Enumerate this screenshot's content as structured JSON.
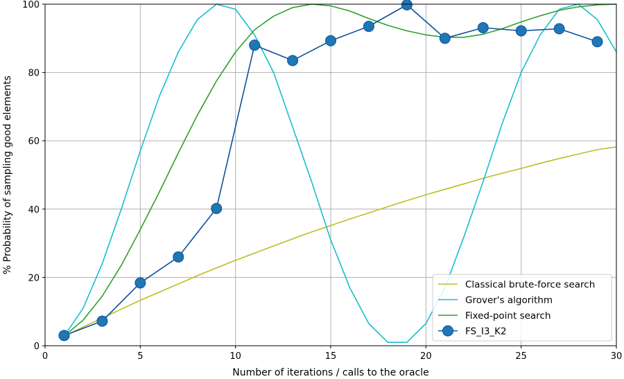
{
  "chart_data": {
    "type": "line",
    "xlabel": "Number of iterations / calls to the oracle",
    "ylabel": "% Probability of sampling good elements",
    "xlim": [
      0,
      30
    ],
    "ylim": [
      0,
      100
    ],
    "xticks": [
      0,
      5,
      10,
      15,
      20,
      25,
      30
    ],
    "yticks": [
      0,
      20,
      40,
      60,
      80,
      100
    ],
    "grid": true,
    "legend_position": "bottom-right",
    "series": [
      {
        "name": "Classical brute-force search",
        "color": "#bcbd22",
        "marker": false,
        "x": [
          1,
          2,
          3,
          4,
          5,
          6,
          7,
          8,
          9,
          10,
          11,
          12,
          13,
          14,
          15,
          16,
          17,
          18,
          19,
          20,
          21,
          22,
          23,
          24,
          25,
          26,
          27,
          28,
          29,
          30
        ],
        "y": [
          2.8,
          5.5,
          8.1,
          10.7,
          13.3,
          15.7,
          18.1,
          20.5,
          22.8,
          25.0,
          27.1,
          29.2,
          31.3,
          33.3,
          35.2,
          37.1,
          38.9,
          40.7,
          42.5,
          44.2,
          45.8,
          47.4,
          49.0,
          50.5,
          51.9,
          53.4,
          54.8,
          56.1,
          57.4,
          58.2
        ]
      },
      {
        "name": "Grover's algorithm",
        "color": "#17becf",
        "marker": false,
        "x": [
          1,
          2,
          3,
          4,
          5,
          6,
          7,
          8,
          9,
          10,
          11,
          12,
          13,
          14,
          15,
          16,
          17,
          18,
          19,
          20,
          21,
          22,
          23,
          24,
          25,
          26,
          27,
          28,
          29,
          30
        ],
        "y": [
          2.8,
          11,
          24,
          40,
          57,
          73,
          86,
          95.5,
          100,
          98.5,
          91,
          80,
          64,
          48,
          31,
          17,
          6.5,
          1,
          1,
          6.5,
          17,
          32,
          48,
          65,
          80,
          91,
          98.5,
          100,
          95.5,
          86
        ]
      },
      {
        "name": "Fixed-point search",
        "color": "#2ca02c",
        "marker": false,
        "x": [
          1,
          2,
          3,
          4,
          5,
          6,
          7,
          8,
          9,
          10,
          11,
          12,
          13,
          14,
          15,
          16,
          17,
          18,
          19,
          20,
          21,
          22,
          23,
          24,
          25,
          26,
          27,
          28,
          29,
          30
        ],
        "y": [
          2.8,
          7.5,
          14.5,
          23.5,
          34,
          45,
          56.5,
          67.5,
          77.5,
          86,
          92.5,
          96.5,
          99,
          100,
          99.5,
          98,
          95.8,
          93.8,
          92.2,
          91,
          90.3,
          90.3,
          91.2,
          92.8,
          94.8,
          96.6,
          98.2,
          99.2,
          99.8,
          100
        ]
      },
      {
        "name": "FS_I3_K2",
        "color": "#1f77b4",
        "line_color": "#0d4f9e",
        "marker": true,
        "x": [
          1,
          3,
          5,
          7,
          9,
          11,
          13,
          15,
          17,
          19,
          21,
          23,
          25,
          27,
          29
        ],
        "y": [
          3,
          7.2,
          18.4,
          26,
          40.2,
          88,
          83.5,
          89.3,
          93.5,
          99.8,
          90,
          93.1,
          92.2,
          92.8,
          89
        ]
      }
    ]
  }
}
